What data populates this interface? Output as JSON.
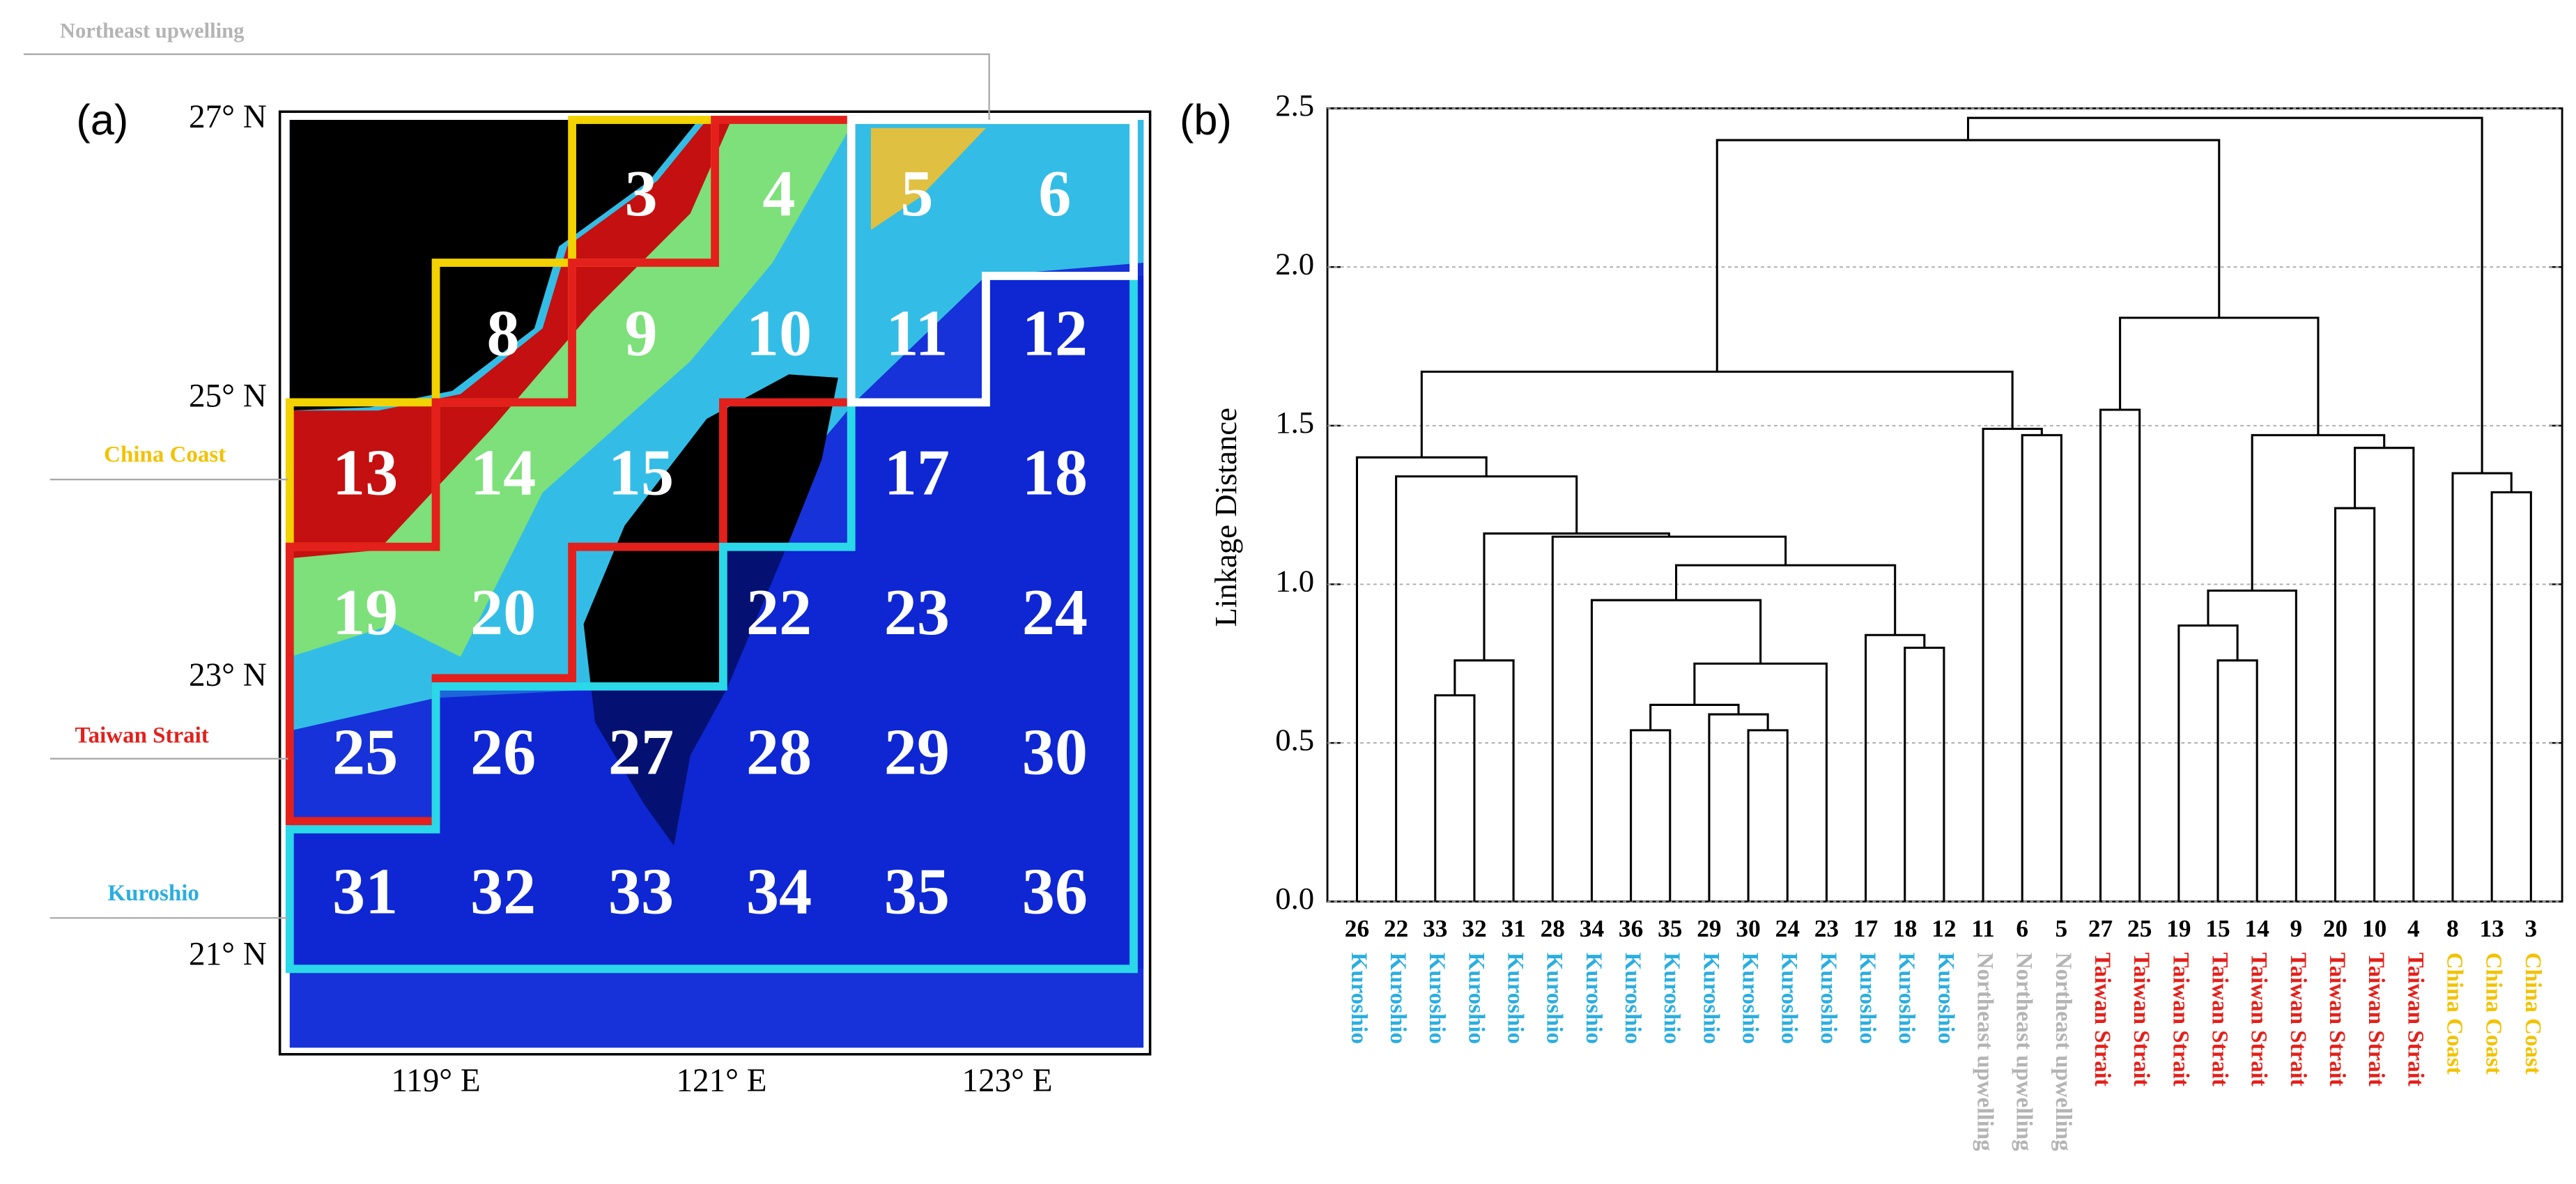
{
  "chart_data": [
    {
      "type": "map",
      "panel": "(a)",
      "regions": [
        {
          "name": "Northeast upwelling",
          "color": "#b4b4b4"
        },
        {
          "name": "China Coast",
          "color": "#f2c200"
        },
        {
          "name": "Taiwan Strait",
          "color": "#e3201b"
        },
        {
          "name": "Kuroshio",
          "color": "#2aaee0"
        }
      ],
      "lat_labels": [
        "27° N",
        "25° N",
        "23° N",
        "21° N"
      ],
      "lon_labels": [
        "119° E",
        "121° E",
        "123° E"
      ],
      "grid": [
        [
          null,
          null,
          "3",
          "4",
          "5",
          "6"
        ],
        [
          null,
          "8",
          "9",
          "10",
          "11",
          "12"
        ],
        [
          "13",
          "14",
          "15",
          null,
          "17",
          "18"
        ],
        [
          "19",
          "20",
          null,
          "22",
          "23",
          "24"
        ],
        [
          "25",
          "26",
          "27",
          "28",
          "29",
          "30"
        ],
        [
          "31",
          "32",
          "33",
          "34",
          "35",
          "36"
        ]
      ]
    },
    {
      "type": "dendrogram",
      "panel": "(b)",
      "y_label": "Linkage  Distance",
      "ylim": [
        0,
        2.5
      ],
      "yticks": [
        {
          "value": 0,
          "label": "0.0"
        },
        0.5,
        {
          "value": 1,
          "label": "1.0"
        },
        1.5,
        {
          "value": 2,
          "label": "2.0"
        },
        2.5
      ],
      "grid": true,
      "leaves": [
        {
          "label": "26",
          "group": "Kuroshio"
        },
        {
          "label": "22",
          "group": "Kuroshio"
        },
        {
          "label": "33",
          "group": "Kuroshio"
        },
        {
          "label": "32",
          "group": "Kuroshio"
        },
        {
          "label": "31",
          "group": "Kuroshio"
        },
        {
          "label": "28",
          "group": "Kuroshio"
        },
        {
          "label": "34",
          "group": "Kuroshio"
        },
        {
          "label": "36",
          "group": "Kuroshio"
        },
        {
          "label": "35",
          "group": "Kuroshio"
        },
        {
          "label": "29",
          "group": "Kuroshio"
        },
        {
          "label": "30",
          "group": "Kuroshio"
        },
        {
          "label": "24",
          "group": "Kuroshio"
        },
        {
          "label": "23",
          "group": "Kuroshio"
        },
        {
          "label": "17",
          "group": "Kuroshio"
        },
        {
          "label": "18",
          "group": "Kuroshio"
        },
        {
          "label": "12",
          "group": "Kuroshio"
        },
        {
          "label": "11",
          "group": "Northeast upwelling"
        },
        {
          "label": "6",
          "group": "Northeast upwelling"
        },
        {
          "label": "5",
          "group": "Northeast upwelling"
        },
        {
          "label": "27",
          "group": "Taiwan Strait"
        },
        {
          "label": "25",
          "group": "Taiwan Strait"
        },
        {
          "label": "19",
          "group": "Taiwan Strait"
        },
        {
          "label": "15",
          "group": "Taiwan Strait"
        },
        {
          "label": "14",
          "group": "Taiwan Strait"
        },
        {
          "label": "9",
          "group": "Taiwan Strait"
        },
        {
          "label": "20",
          "group": "Taiwan Strait"
        },
        {
          "label": "10",
          "group": "Taiwan Strait"
        },
        {
          "label": "4",
          "group": "Taiwan Strait"
        },
        {
          "label": "8",
          "group": "China Coast"
        },
        {
          "label": "13",
          "group": "China Coast"
        },
        {
          "label": "3",
          "group": "China Coast"
        }
      ],
      "merges": [
        [
          10,
          11,
          0.54
        ],
        [
          9,
          31,
          0.59
        ],
        [
          7,
          8,
          0.54
        ],
        [
          33,
          32,
          0.62
        ],
        [
          34,
          12,
          0.75
        ],
        [
          14,
          15,
          0.8
        ],
        [
          13,
          36,
          0.84
        ],
        [
          6,
          35,
          0.95
        ],
        [
          38,
          37,
          1.06
        ],
        [
          5,
          39,
          1.15
        ],
        [
          2,
          3,
          0.65
        ],
        [
          41,
          4,
          0.76
        ],
        [
          42,
          40,
          1.16
        ],
        [
          1,
          43,
          1.34
        ],
        [
          0,
          44,
          1.4
        ],
        [
          17,
          18,
          1.47
        ],
        [
          16,
          46,
          1.49
        ],
        [
          45,
          47,
          1.67
        ],
        [
          22,
          23,
          0.76
        ],
        [
          21,
          49,
          0.87
        ],
        [
          50,
          24,
          0.98
        ],
        [
          25,
          26,
          1.24
        ],
        [
          52,
          27,
          1.43
        ],
        [
          51,
          53,
          1.47
        ],
        [
          19,
          20,
          1.55
        ],
        [
          55,
          54,
          1.84
        ],
        [
          29,
          30,
          1.29
        ],
        [
          28,
          57,
          1.35
        ],
        [
          48,
          56,
          2.4
        ],
        [
          59,
          58,
          2.47
        ]
      ]
    }
  ]
}
